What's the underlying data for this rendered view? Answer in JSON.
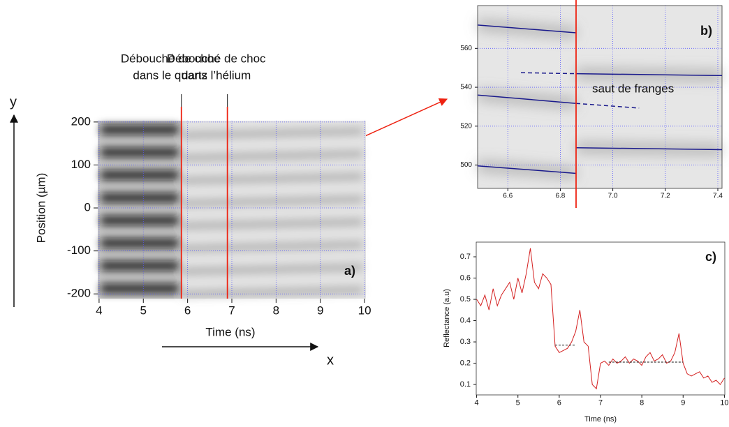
{
  "chart_data": [
    {
      "type": "streak",
      "panel": "a)",
      "xlabel": "Time (ns)",
      "ylabel": "Position (µm)",
      "x_arrow": "x",
      "y_arrow": "y",
      "xlim": [
        3.97,
        10.03
      ],
      "xticks": [
        4,
        5,
        6,
        7,
        8,
        9,
        10
      ],
      "ylim": [
        -211,
        203
      ],
      "yticks": [
        -200,
        -100,
        0,
        100,
        200
      ],
      "grid": true,
      "shock_lines": [
        {
          "x": 5.86,
          "label": [
            "Débouché de choc",
            "dans le quartz"
          ]
        },
        {
          "x": 6.9,
          "label": [
            "Débouché de choc",
            "dans l’hélium"
          ]
        }
      ]
    },
    {
      "type": "fringes",
      "panel": "b)",
      "annotation": "saut de franges",
      "xlim": [
        6.485,
        7.416
      ],
      "xticks": [
        6.6,
        6.8,
        {
          "value": 7,
          "label": "7.0"
        },
        7.2,
        7.4
      ],
      "ylim": [
        488,
        582
      ],
      "yticks": [
        500,
        520,
        540,
        560
      ],
      "grid": true,
      "shock_x": 6.86,
      "line_color": "#1a1a8c",
      "lines": [
        {
          "x": [
            6.485,
            6.86
          ],
          "y": [
            572,
            568
          ],
          "dash": false
        },
        {
          "x": [
            6.65,
            6.86
          ],
          "y": [
            547.5,
            547
          ],
          "dash": true
        },
        {
          "x": [
            6.86,
            7.416
          ],
          "y": [
            547,
            546
          ],
          "dash": false
        },
        {
          "x": [
            6.485,
            6.86
          ],
          "y": [
            536,
            531.7
          ],
          "dash": false
        },
        {
          "x": [
            6.86,
            7.1
          ],
          "y": [
            531.7,
            529.3
          ],
          "dash": true
        },
        {
          "x": [
            6.86,
            7.416
          ],
          "y": [
            508.9,
            507.9
          ],
          "dash": false
        },
        {
          "x": [
            6.485,
            6.86
          ],
          "y": [
            499.6,
            495.7
          ],
          "dash": false
        }
      ]
    },
    {
      "type": "line",
      "panel": "c)",
      "xlabel": "Time (ns)",
      "ylabel": "Reflectance (a.u)",
      "color": "#d42020",
      "xlim": [
        3.99,
        10.01
      ],
      "xticks": [
        4,
        5,
        6,
        7,
        8,
        9,
        10
      ],
      "ylim": [
        0.051,
        0.769
      ],
      "yticks": [
        0.1,
        0.2,
        0.3,
        0.4,
        0.5,
        0.6,
        0.7
      ],
      "x": [
        4.0,
        4.1,
        4.2,
        4.3,
        4.4,
        4.5,
        4.6,
        4.7,
        4.8,
        4.9,
        5.0,
        5.1,
        5.2,
        5.3,
        5.4,
        5.5,
        5.6,
        5.7,
        5.8,
        5.9,
        6.0,
        6.1,
        6.2,
        6.3,
        6.4,
        6.5,
        6.6,
        6.7,
        6.8,
        6.9,
        7.0,
        7.1,
        7.2,
        7.3,
        7.4,
        7.5,
        7.6,
        7.7,
        7.8,
        7.9,
        8.0,
        8.1,
        8.2,
        8.3,
        8.4,
        8.5,
        8.6,
        8.7,
        8.8,
        8.9,
        9.0,
        9.1,
        9.2,
        9.3,
        9.4,
        9.5,
        9.6,
        9.7,
        9.8,
        9.9,
        10.0
      ],
      "values": [
        0.5,
        0.47,
        0.52,
        0.45,
        0.55,
        0.47,
        0.52,
        0.55,
        0.58,
        0.5,
        0.6,
        0.53,
        0.62,
        0.74,
        0.58,
        0.55,
        0.62,
        0.6,
        0.57,
        0.28,
        0.25,
        0.26,
        0.27,
        0.3,
        0.35,
        0.45,
        0.3,
        0.28,
        0.1,
        0.08,
        0.2,
        0.21,
        0.19,
        0.22,
        0.2,
        0.21,
        0.23,
        0.2,
        0.22,
        0.21,
        0.19,
        0.23,
        0.25,
        0.21,
        0.22,
        0.24,
        0.2,
        0.21,
        0.25,
        0.34,
        0.2,
        0.15,
        0.14,
        0.15,
        0.16,
        0.13,
        0.14,
        0.11,
        0.12,
        0.1,
        0.13
      ],
      "fit_lines": [
        {
          "x": [
            5.9,
            6.4
          ],
          "y": 0.285
        },
        {
          "x": [
            7.2,
            9.0
          ],
          "y": 0.205
        }
      ]
    }
  ]
}
